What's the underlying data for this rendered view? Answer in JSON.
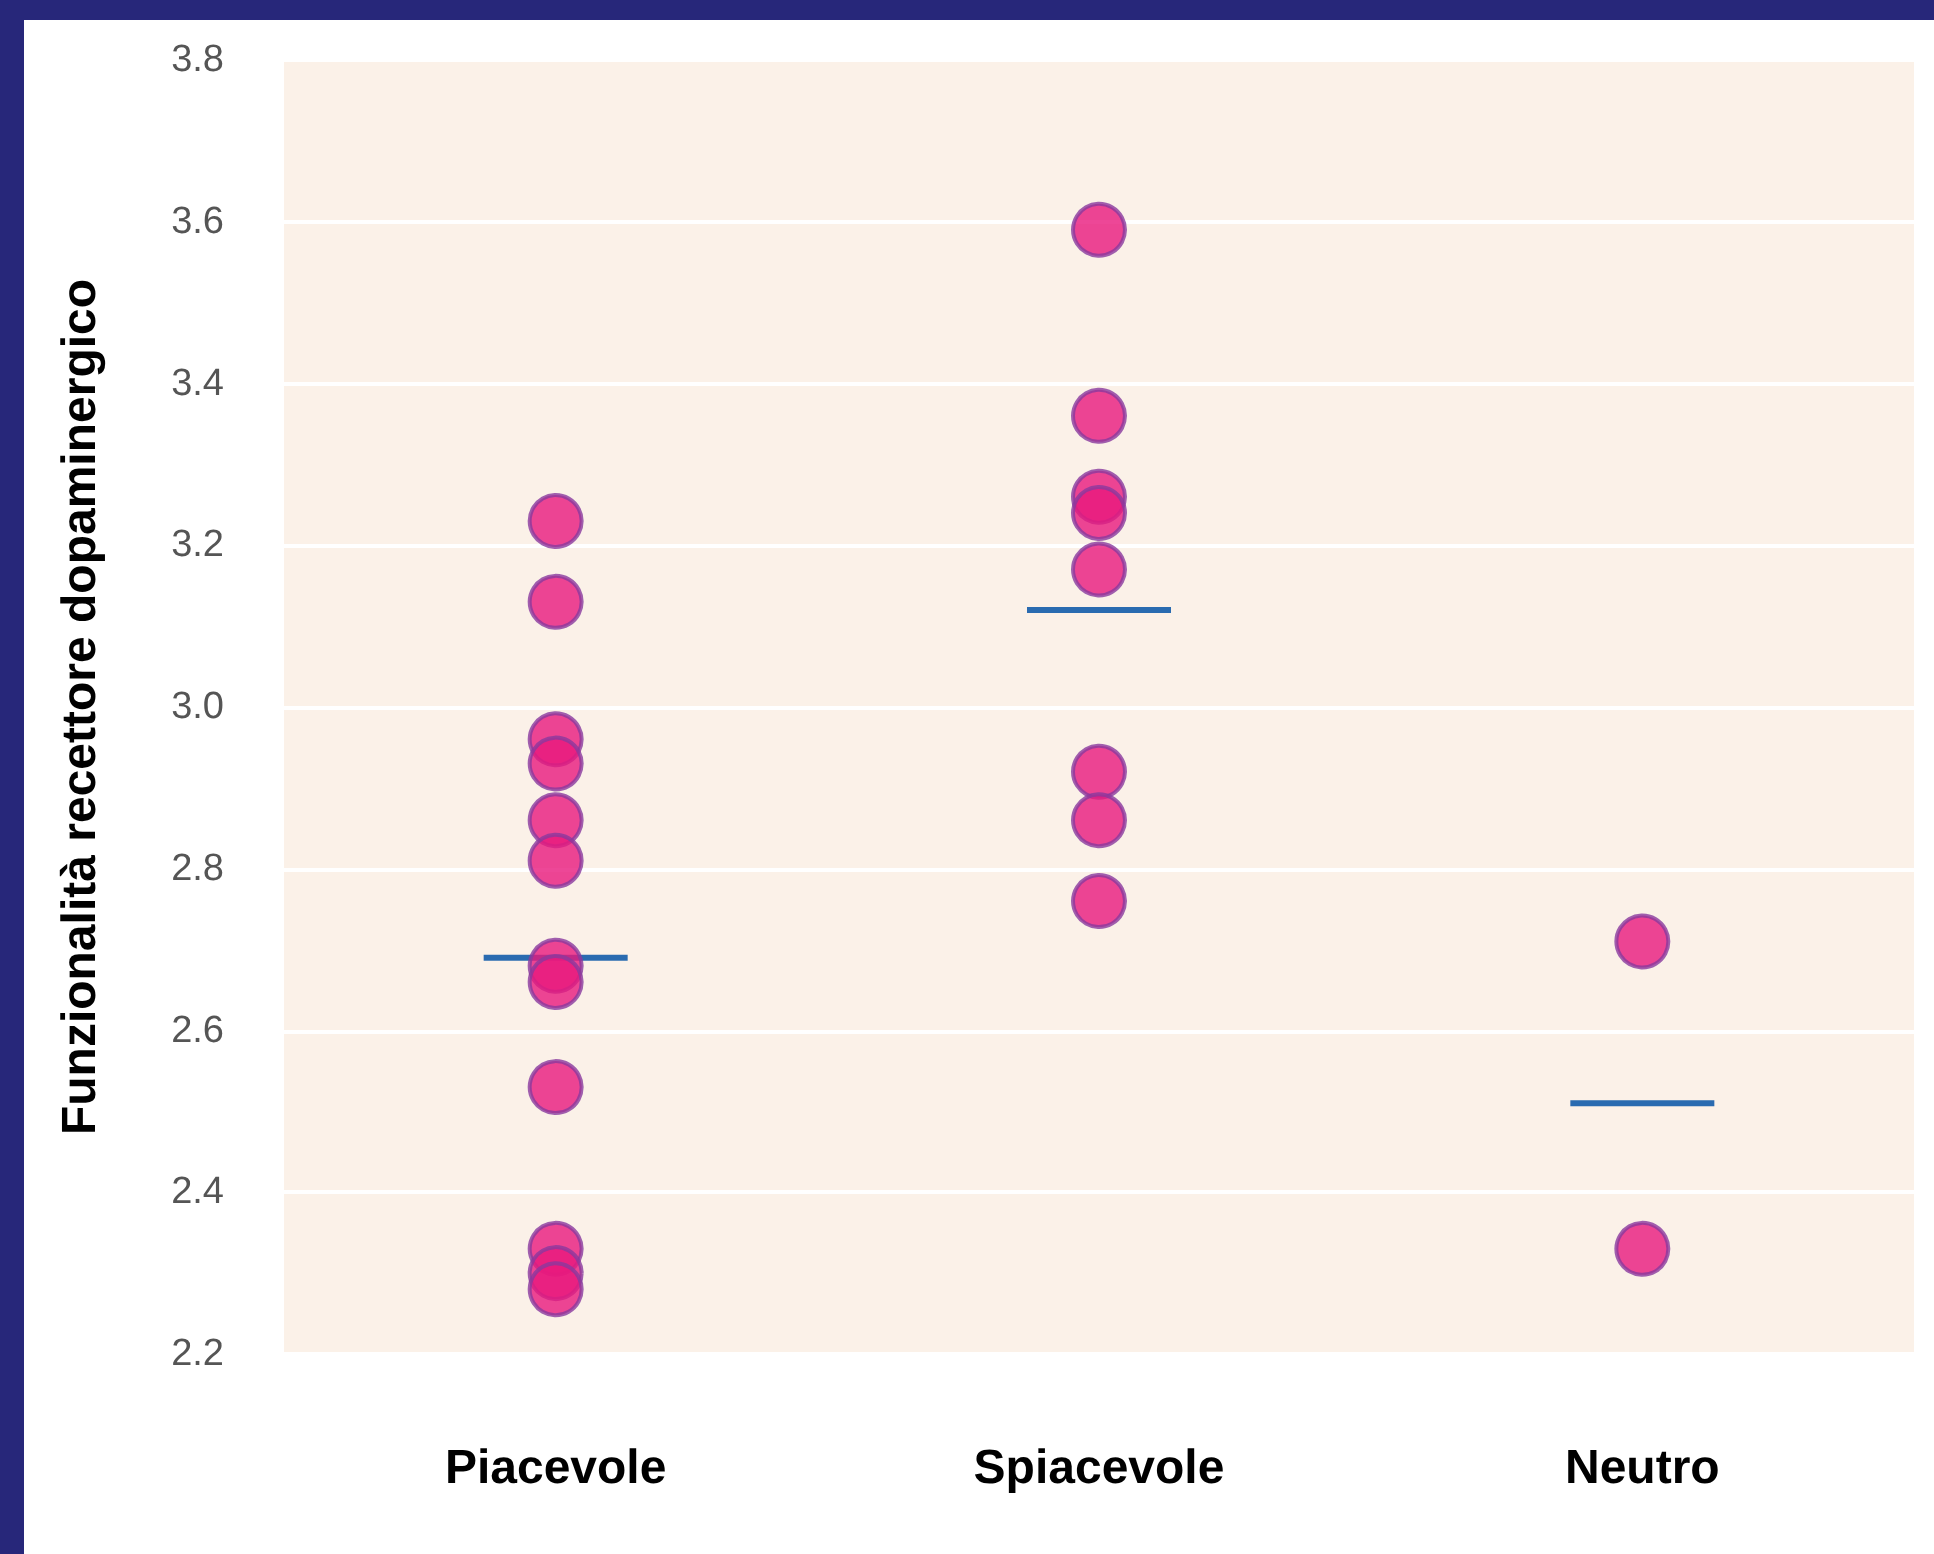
{
  "chart_data": {
    "type": "scatter",
    "ylabel": "Funzionalità recettore dopaminergico",
    "categories": [
      "Piacevole",
      "Spiacevole",
      "Neutro"
    ],
    "ref_lines": [
      {
        "axis": "y",
        "value": 2.69,
        "color": "#2a6bb0"
      },
      {
        "axis": "y",
        "value": 3.12,
        "color": "#2a6bb0"
      },
      {
        "axis": "y",
        "value": 2.51,
        "color": "#2a6bb0"
      }
    ],
    "series": [
      {
        "color": "#e8197d",
        "marker": "circle",
        "x": [
          "Piacevole",
          "Piacevole",
          "Piacevole",
          "Piacevole",
          "Piacevole",
          "Piacevole",
          "Piacevole",
          "Piacevole",
          "Piacevole",
          "Piacevole",
          "Piacevole",
          "Piacevole",
          "Spiacevole",
          "Spiacevole",
          "Spiacevole",
          "Spiacevole",
          "Spiacevole",
          "Spiacevole",
          "Spiacevole",
          "Spiacevole",
          "Neutro",
          "Neutro"
        ],
        "values": [
          3.23,
          3.13,
          2.96,
          2.93,
          2.86,
          2.81,
          2.68,
          2.66,
          2.53,
          2.33,
          2.3,
          2.28,
          3.59,
          3.36,
          3.26,
          3.24,
          3.17,
          2.92,
          2.86,
          2.76,
          2.71,
          2.33
        ]
      }
    ],
    "ylim": [
      2.2,
      3.8
    ],
    "yticks": [
      {
        "value": 2.2,
        "label": "2.2"
      },
      {
        "value": 2.4,
        "label": "2.4"
      },
      {
        "value": 2.6,
        "label": "2.6"
      },
      {
        "value": 2.8,
        "label": "2.8"
      },
      {
        "value": 3.0,
        "label": "3.0"
      },
      {
        "value": 3.2,
        "label": "3.2"
      },
      {
        "value": 3.4,
        "label": "3.4"
      },
      {
        "value": 3.6,
        "label": "3.6"
      },
      {
        "value": 3.8,
        "label": "3.8"
      }
    ],
    "grid": "y"
  }
}
